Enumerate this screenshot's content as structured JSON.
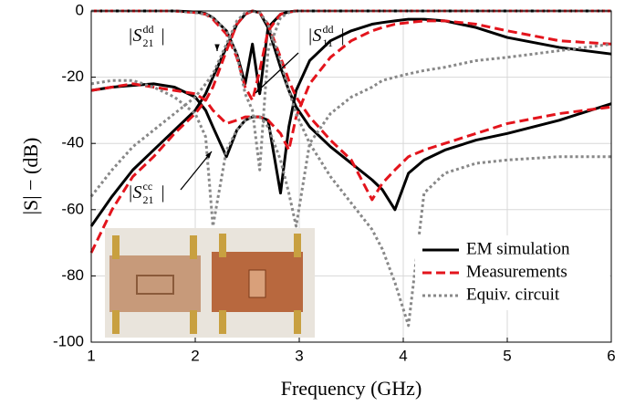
{
  "chart_data": {
    "type": "line",
    "xlabel": "Frequency (GHz)",
    "ylabel": "|S| − (dB)",
    "x": [
      1,
      1.2,
      1.4,
      1.6,
      1.8,
      2.0,
      2.1,
      2.17,
      2.3,
      2.4,
      2.48,
      2.55,
      2.62,
      2.7,
      2.82,
      2.9,
      2.97,
      3.1,
      3.3,
      3.5,
      3.7,
      3.8,
      3.92,
      4.05,
      4.2,
      4.4,
      4.7,
      5.0,
      5.5,
      6.0
    ],
    "xlim": [
      1,
      6
    ],
    "xticks": [
      1,
      2,
      3,
      4,
      5,
      6
    ],
    "ylim": [
      -100,
      0
    ],
    "yticks": [
      -100,
      -80,
      -60,
      -40,
      -20,
      0
    ],
    "grid": true,
    "legend": "lower right",
    "series": [
      {
        "name": "EM simulation",
        "color": "#000000",
        "dash": "solid",
        "values": [
          [
            -65,
            -56,
            -48,
            -42,
            -36,
            -30,
            -25,
            -20,
            -11,
            -4,
            -1,
            0,
            -0.5,
            -5,
            -17,
            -24,
            -29,
            -35,
            -41,
            -46,
            -51,
            -54,
            -60,
            -49,
            -45,
            -42,
            -39,
            -37,
            -33,
            -28
          ],
          [
            0,
            0,
            0,
            0,
            0,
            -0.3,
            -0.8,
            -2,
            -6,
            -13,
            -22,
            -10,
            -25,
            -5,
            -1,
            -0.3,
            0,
            0,
            0,
            0,
            0,
            0,
            0,
            0,
            0,
            0,
            0,
            0,
            0,
            0
          ],
          [
            -24,
            -23,
            -22.5,
            -22,
            -23,
            -26,
            -30,
            -35,
            -44,
            -36,
            -33,
            -32,
            -32,
            -33,
            -55,
            -35,
            -24,
            -15,
            -9,
            -6,
            -4,
            -3.5,
            -3,
            -2.5,
            -2.5,
            -3,
            -5,
            -8,
            -11,
            -13
          ]
        ]
      },
      {
        "name": "Measurements",
        "color": "#e3141c",
        "dash": "dashed",
        "values": [
          [
            -73,
            -60,
            -50,
            -44,
            -37,
            -31,
            -27,
            -23,
            -12,
            -4,
            -1,
            0,
            -0.5,
            -4,
            -14,
            -21,
            -26,
            -32,
            -39,
            -45,
            -57,
            -52,
            -48,
            -44,
            -42,
            -40,
            -37,
            -34,
            -31,
            -29
          ],
          [
            0,
            0,
            0,
            0,
            0,
            -0.5,
            -1,
            -2.5,
            -7,
            -14,
            -23,
            -27,
            -18,
            -6,
            -1,
            -0.3,
            0,
            0,
            0,
            0,
            0,
            0,
            0,
            0,
            0,
            0,
            0,
            0,
            0,
            0
          ],
          [
            -24,
            -23,
            -22,
            -23,
            -24,
            -25,
            -27,
            -30,
            -34,
            -33,
            -32,
            -32,
            -32,
            -33,
            -37,
            -42,
            -32,
            -22,
            -14,
            -9,
            -6,
            -5,
            -4,
            -3.5,
            -3,
            -3,
            -4,
            -6,
            -9,
            -10
          ]
        ]
      },
      {
        "name": "Equiv. circuit",
        "color": "#888888",
        "dash": "dotted",
        "values": [
          [
            -56,
            -48,
            -41,
            -36,
            -31,
            -26,
            -22,
            -19,
            -10,
            -3,
            -0.5,
            0,
            -0.5,
            -4,
            -15,
            -24,
            -31,
            -40,
            -50,
            -58,
            -66,
            -72,
            -82,
            -95,
            -55,
            -49,
            -46,
            -45,
            -44,
            -44
          ],
          [
            0,
            0,
            0,
            0,
            0,
            -0.5,
            -1,
            -2,
            -6,
            -13,
            -25,
            -30,
            -48,
            -12,
            -2,
            -0.5,
            0,
            0,
            0,
            0,
            0,
            0,
            0,
            0,
            0,
            0,
            0,
            0,
            0,
            0
          ],
          [
            -22,
            -21,
            -21,
            -23,
            -26,
            -31,
            -38,
            -65,
            -42,
            -36,
            -33,
            -32,
            -32,
            -35,
            -45,
            -55,
            -65,
            -40,
            -31,
            -26,
            -23,
            -21,
            -20,
            -19,
            -18,
            -17,
            -15,
            -14,
            -12,
            -10
          ]
        ]
      }
    ],
    "annotations": [
      {
        "text": "|S",
        "sub": "21",
        "sup": "dd",
        "tail": "|"
      },
      {
        "text": "|S",
        "sub": "11",
        "sup": "dd",
        "tail": "|"
      },
      {
        "text": "|S",
        "sub": "21",
        "sup": "cc",
        "tail": "|"
      }
    ]
  }
}
